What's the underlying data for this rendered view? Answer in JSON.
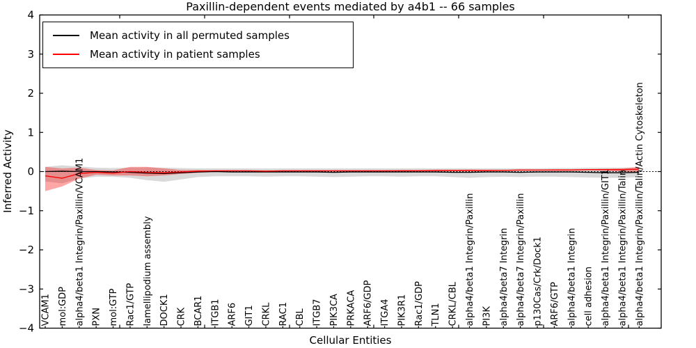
{
  "title": "Paxillin-dependent events mediated by a4b1 -- 66 samples",
  "legend": {
    "items": [
      {
        "label": "Mean activity in all permuted samples",
        "color": "#000000"
      },
      {
        "label": "Mean activity in patient samples",
        "color": "#ff0000"
      }
    ]
  },
  "chart_data": {
    "type": "line",
    "title": "Paxillin-dependent events mediated by a4b1 -- 66 samples",
    "xlabel": "Cellular Entities",
    "ylabel": "Inferred Activity",
    "ylim": [
      -4,
      4
    ],
    "yticks": [
      4,
      3,
      2,
      1,
      0,
      -1,
      -2,
      -3,
      -4
    ],
    "grid": false,
    "legend_position": "upper left",
    "zero_line": {
      "style": "dashed",
      "color": "#000000",
      "y": 0
    },
    "categories": [
      "VCAM1",
      "mol:GDP",
      "alpha4/beta1 Integrin/Paxillin/VCAM1",
      "PXN",
      "mol:GTP",
      "Rac1/GTP",
      "lamellipodium assembly",
      "DOCK1",
      "CRK",
      "BCAR1",
      "ITGB1",
      "ARF6",
      "GIT1",
      "CRKL",
      "RAC1",
      "CBL",
      "ITGB7",
      "PIK3CA",
      "PRKACA",
      "ARF6/GDP",
      "ITGA4",
      "PIK3R1",
      "Rac1/GDP",
      "TLN1",
      "CRKL/CBL",
      "alpha4/beta1 Integrin/Paxillin",
      "PI3K",
      "alpha4/beta7 Integrin",
      "alpha4/beta7 Integrin/Paxillin",
      "p130Cas/Crk/Dock1",
      "ARF6/GTP",
      "alpha4/beta1 Integrin",
      "cell adhesion",
      "alpha4/beta1 Integrin/Paxillin/GIT1",
      "alpha4/beta1 Integrin/Paxillin/Talin",
      "alpha4/beta1 Integrin/Paxillin/Talin/Actin Cytoskeleton"
    ],
    "series": [
      {
        "id": "permuted-mean-line",
        "name": "Mean activity in all permuted samples",
        "color": "#000000",
        "values": [
          0.0,
          0.01,
          0.0,
          0.0,
          -0.01,
          -0.02,
          -0.04,
          -0.05,
          -0.03,
          -0.01,
          0.0,
          -0.01,
          -0.01,
          -0.01,
          -0.01,
          -0.01,
          -0.01,
          -0.02,
          -0.01,
          -0.01,
          -0.01,
          -0.01,
          -0.01,
          -0.01,
          -0.02,
          -0.02,
          -0.01,
          -0.01,
          -0.02,
          -0.01,
          -0.01,
          -0.01,
          -0.02,
          -0.03,
          -0.03,
          -0.02
        ]
      },
      {
        "id": "patient-mean-line",
        "name": "Mean activity in patient samples",
        "color": "#ff0000",
        "values": [
          -0.11,
          -0.17,
          -0.05,
          -0.02,
          -0.04,
          0.0,
          -0.02,
          -0.03,
          -0.01,
          0.01,
          0.02,
          0.02,
          0.02,
          0.01,
          0.02,
          0.02,
          0.02,
          0.02,
          0.02,
          0.02,
          0.02,
          0.02,
          0.02,
          0.03,
          0.03,
          0.03,
          0.03,
          0.03,
          0.04,
          0.04,
          0.04,
          0.04,
          0.05,
          0.05,
          0.05,
          0.06
        ]
      }
    ],
    "bands": [
      {
        "id": "permuted-std-band",
        "name": "permuted samples std band",
        "color": "#000000",
        "opacity": 0.15,
        "upper": [
          0.12,
          0.16,
          0.13,
          0.1,
          0.09,
          0.1,
          0.11,
          0.1,
          0.09,
          0.08,
          0.08,
          0.08,
          0.08,
          0.08,
          0.08,
          0.08,
          0.08,
          0.08,
          0.08,
          0.08,
          0.08,
          0.08,
          0.08,
          0.08,
          0.08,
          0.08,
          0.08,
          0.08,
          0.08,
          0.08,
          0.09,
          0.09,
          0.1,
          0.1,
          0.1,
          0.1
        ],
        "lower": [
          -0.25,
          -0.3,
          -0.18,
          -0.13,
          -0.13,
          -0.16,
          -0.22,
          -0.26,
          -0.2,
          -0.14,
          -0.12,
          -0.12,
          -0.12,
          -0.13,
          -0.12,
          -0.12,
          -0.13,
          -0.14,
          -0.13,
          -0.12,
          -0.12,
          -0.13,
          -0.12,
          -0.12,
          -0.14,
          -0.16,
          -0.14,
          -0.13,
          -0.14,
          -0.13,
          -0.13,
          -0.14,
          -0.15,
          -0.16,
          -0.16,
          -0.14
        ]
      },
      {
        "id": "patient-std-band",
        "name": "patient samples std band",
        "color": "#ff0000",
        "opacity": 0.35,
        "upper": [
          0.12,
          0.08,
          0.1,
          0.04,
          0.03,
          0.12,
          0.12,
          0.08,
          0.04,
          0.04,
          0.03,
          0.03,
          0.03,
          0.03,
          0.03,
          0.03,
          0.03,
          0.03,
          0.03,
          0.03,
          0.03,
          0.04,
          0.04,
          0.04,
          0.04,
          0.05,
          0.04,
          0.04,
          0.05,
          0.05,
          0.06,
          0.06,
          0.06,
          0.07,
          0.08,
          0.12
        ],
        "lower": [
          -0.5,
          -0.38,
          -0.18,
          -0.08,
          -0.1,
          -0.1,
          -0.12,
          -0.1,
          -0.06,
          -0.03,
          -0.01,
          0.0,
          0.0,
          0.0,
          0.0,
          0.0,
          0.0,
          0.0,
          0.0,
          0.0,
          0.0,
          0.01,
          0.01,
          0.01,
          0.01,
          0.01,
          0.01,
          0.02,
          0.02,
          0.02,
          0.02,
          0.02,
          0.03,
          0.02,
          0.0,
          -0.04
        ]
      }
    ]
  }
}
